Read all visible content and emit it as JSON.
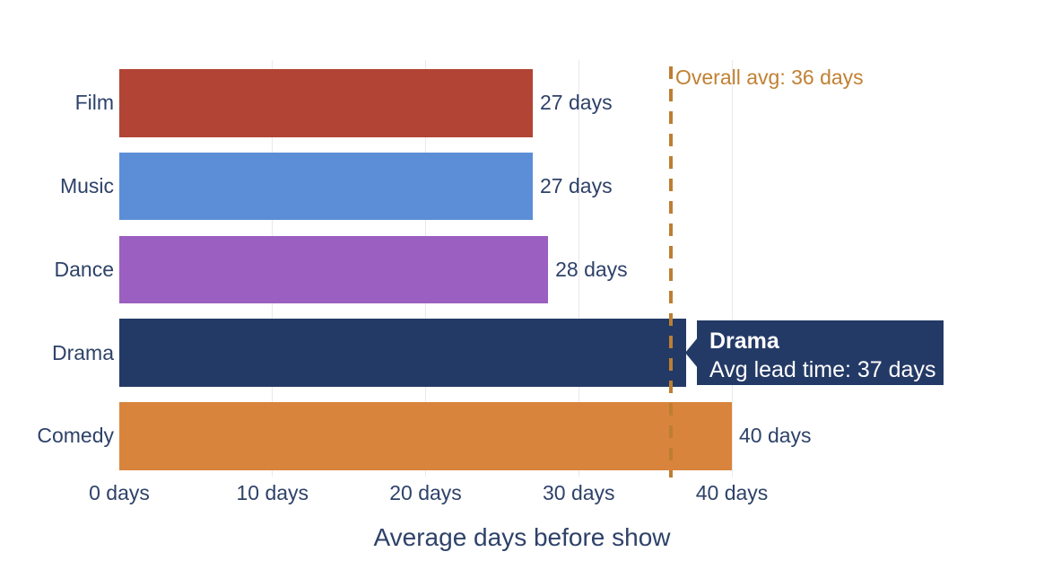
{
  "chart_data": {
    "type": "bar",
    "orientation": "horizontal",
    "title": "",
    "xlabel": "Average days before show",
    "ylabel": "",
    "categories": [
      "Film",
      "Music",
      "Dance",
      "Drama",
      "Comedy"
    ],
    "values": [
      27,
      27,
      28,
      37,
      40
    ],
    "bar_colors": [
      "#b14434",
      "#5b8ed6",
      "#9a5fc0",
      "#243a66",
      "#d9843c"
    ],
    "value_labels": [
      "27 days",
      "27 days",
      "28 days",
      null,
      "40 days"
    ],
    "x_ticks": [
      {
        "value": 0,
        "label": "0 days"
      },
      {
        "value": 10,
        "label": "10 days"
      },
      {
        "value": 20,
        "label": "20 days"
      },
      {
        "value": 30,
        "label": "30 days"
      },
      {
        "value": 40,
        "label": "40 days"
      }
    ],
    "xlim": [
      0,
      42.7
    ],
    "grid": "vertical-light",
    "background": "#ffffff",
    "text_color": "#2e4269",
    "reference_line": {
      "value": 36,
      "label": "Overall avg: 36 days",
      "style": "dashed",
      "color": "#bd7e33",
      "label_color": "#c08133"
    },
    "tooltip": {
      "target_category": "Drama",
      "title": "Drama",
      "body": "Avg lead time: 37 days",
      "background": "#243a66",
      "text_color": "#ffffff"
    }
  }
}
